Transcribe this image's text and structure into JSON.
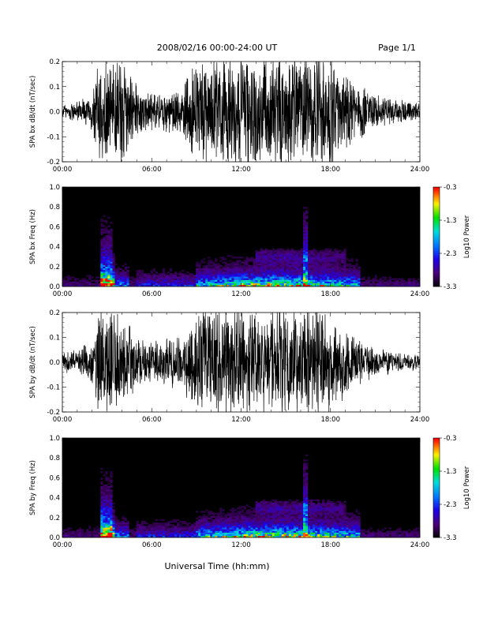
{
  "header": {
    "title": "2008/02/16  00:00-24:00 UT",
    "page": "Page 1/1"
  },
  "x_axis_label": "Universal Time (hh:mm)",
  "chart_data": [
    {
      "type": "line",
      "ylabel": "SPA bx dB/dt (nT/sec)",
      "x_range_hours": [
        0,
        24
      ],
      "x_ticks": [
        "00:00",
        "06:00",
        "12:00",
        "18:00",
        "24:00"
      ],
      "ylim": [
        -0.2,
        0.2
      ],
      "y_ticks": [
        "0.2",
        "0.1",
        "0.0",
        "-0.1",
        "-0.2"
      ],
      "envelope": {
        "hours": [
          0,
          1,
          2,
          2.5,
          3,
          4,
          5,
          6,
          7,
          8,
          9,
          9.5,
          10,
          11,
          12,
          13,
          14,
          15,
          16,
          17,
          18,
          19,
          20,
          21,
          22,
          23,
          24
        ],
        "amplitude": [
          0.03,
          0.05,
          0.08,
          0.25,
          0.25,
          0.25,
          0.12,
          0.08,
          0.09,
          0.1,
          0.25,
          0.25,
          0.25,
          0.25,
          0.25,
          0.25,
          0.25,
          0.25,
          0.25,
          0.25,
          0.25,
          0.2,
          0.12,
          0.08,
          0.06,
          0.05,
          0.04
        ]
      }
    },
    {
      "type": "heatmap",
      "ylabel": "SPA bx Freq (Hz)",
      "x_range_hours": [
        0,
        24
      ],
      "x_ticks": [
        "00:00",
        "06:00",
        "12:00",
        "18:00",
        "24:00"
      ],
      "ylim": [
        0,
        1
      ],
      "y_ticks": [
        "1.0",
        "0.8",
        "0.6",
        "0.4",
        "0.2",
        "0.0"
      ],
      "colorbar": {
        "label": "Log10 Power",
        "range": [
          -3.3,
          -0.3
        ],
        "ticks": [
          "-0.3",
          "-1.3",
          "-2.3",
          "-3.3"
        ]
      }
    },
    {
      "type": "line",
      "ylabel": "SPA by dB/dt (nT/sec)",
      "x_range_hours": [
        0,
        24
      ],
      "x_ticks": [
        "00:00",
        "06:00",
        "12:00",
        "18:00",
        "24:00"
      ],
      "ylim": [
        -0.2,
        0.2
      ],
      "y_ticks": [
        "0.2",
        "0.1",
        "0.0",
        "-0.1",
        "-0.2"
      ],
      "envelope": {
        "hours": [
          0,
          1,
          2,
          2.5,
          3,
          4,
          5,
          6,
          7,
          8,
          9,
          9.5,
          10,
          11,
          12,
          13,
          14,
          15,
          16,
          17,
          18,
          19,
          20,
          21,
          22,
          23,
          24
        ],
        "amplitude": [
          0.04,
          0.06,
          0.09,
          0.25,
          0.25,
          0.22,
          0.12,
          0.09,
          0.1,
          0.12,
          0.2,
          0.25,
          0.25,
          0.25,
          0.25,
          0.25,
          0.25,
          0.25,
          0.25,
          0.25,
          0.22,
          0.14,
          0.1,
          0.07,
          0.05,
          0.04,
          0.04
        ]
      }
    },
    {
      "type": "heatmap",
      "ylabel": "SPA by Freq (Hz)",
      "x_range_hours": [
        0,
        24
      ],
      "x_ticks": [
        "00:00",
        "06:00",
        "12:00",
        "18:00",
        "24:00"
      ],
      "ylim": [
        0,
        1
      ],
      "y_ticks": [
        "1.0",
        "0.8",
        "0.6",
        "0.4",
        "0.2",
        "0.0"
      ],
      "colorbar": {
        "label": "Log10 Power",
        "range": [
          -3.3,
          -0.3
        ],
        "ticks": [
          "-0.3",
          "-1.3",
          "-2.3",
          "-3.3"
        ]
      }
    }
  ]
}
